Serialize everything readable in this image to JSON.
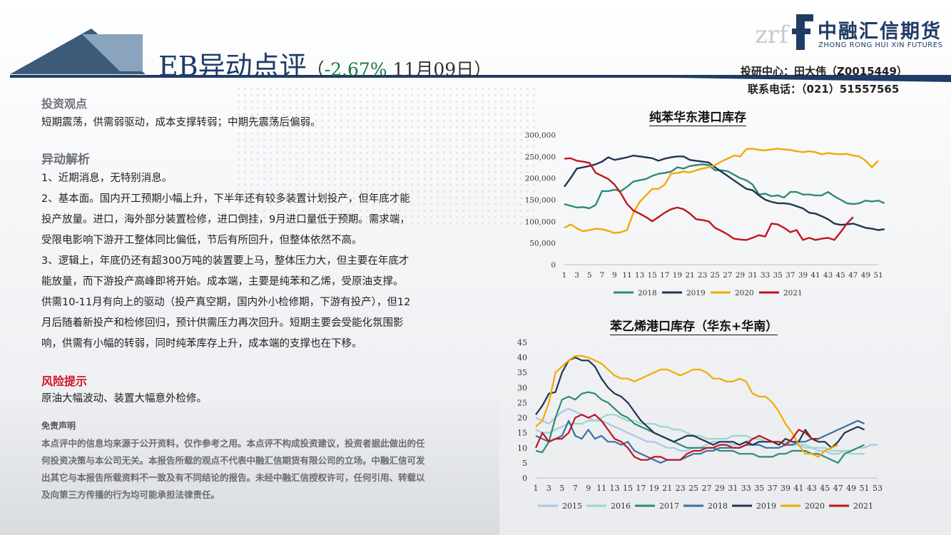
{
  "header": {
    "title_main": "EB异动点评",
    "title_open": "（",
    "title_pct": "-2.67%",
    "title_date": " 11月09日）",
    "contact_line1": "投研中心：田大伟（Z0015449）",
    "contact_line2": "联系电话：（021）51557565",
    "logo_mark": "zrf",
    "logo_cn": "中融汇信期货",
    "logo_en": "ZHONG RONG HUI XIN FUTURES",
    "colors": {
      "navy": "#1f3c66",
      "green": "#1a7a3c",
      "red": "#d0172b"
    }
  },
  "left": {
    "view_heading": "投资观点",
    "view_text": "短期震荡，供需弱驱动，成本支撑转弱；中期先震荡后偏弱。",
    "analysis_heading": "异动解析",
    "lines": [
      "1、近期消息，无特别消息。",
      "2、基本面。国内开工预期小幅上升，下半年还有较多装置计划投产，但年底才能",
      "投产放量。进口，海外部分装置检修，进口倒挂，9月进口量低于预期。需求端，",
      "受限电影响下游开工整体同比偏低，节后有所回升，但整体依然不高。",
      "3、逻辑上，年底仍还有超300万吨的装置要上马，整体压力大，但主要在年底才",
      "能放量，而下游投产高峰即将开始。成本端，主要是纯苯和乙烯，受原油支撑。",
      "供需10-11月有向上的驱动（投产真空期，国内外小检修期，下游有投产），但12",
      "月后随着新投产和检修回归，预计供需压力再次回升。短期主要会受能化氛围影",
      "响，供需有小幅的转弱，同时纯苯库存上升，成本端的支撑也在下移。"
    ],
    "risk_heading": "风险提示",
    "risk_text": "原油大幅波动、装置大幅意外检修。",
    "disclaimer_heading": "免责声明",
    "disclaimer_lines": [
      "本点评中的信息均来源于公开资料，仅作参考之用。本点评不构成投资建议，投资者据此做出的任",
      "何投资决策与本公司无关。本报告所载的观点不代表中融汇信期货有限公司的立场。中融汇信可发",
      "出其它与本报告所载资料不一致及有不同结论的报告。未经中融汇信授权许可，任何引用、转载以",
      "及向第三方传播的行为均可能承担法律责任。"
    ]
  },
  "chart_data": [
    {
      "type": "line",
      "title": "纯苯华东港口库存",
      "ylim": [
        0,
        300000
      ],
      "yticks": [
        "0",
        "50,000",
        "100,000",
        "150,000",
        "200,000",
        "250,000",
        "300,000"
      ],
      "xticks": [
        "1",
        "3",
        "5",
        "7",
        "9",
        "11",
        "13",
        "15",
        "17",
        "19",
        "21",
        "23",
        "25",
        "27",
        "29",
        "31",
        "33",
        "35",
        "37",
        "39",
        "41",
        "43",
        "45",
        "47",
        "49",
        "51"
      ],
      "grid": false,
      "legend_position": "bottom",
      "series": [
        {
          "name": "2018",
          "color": "#2e8b72",
          "values": [
            140000,
            136000,
            132000,
            133000,
            130000,
            138000,
            170000,
            170000,
            173000,
            170000,
            180000,
            192000,
            195000,
            198000,
            205000,
            210000,
            212000,
            215000,
            225000,
            222000,
            228000,
            230000,
            232000,
            230000,
            218000,
            218000,
            216000,
            208000,
            200000,
            195000,
            185000,
            162000,
            164000,
            158000,
            160000,
            155000,
            168000,
            168000,
            162000,
            162000,
            160000,
            160000,
            168000,
            158000,
            150000,
            142000,
            140000,
            142000,
            148000,
            146000,
            148000,
            142000
          ]
        },
        {
          "name": "2019",
          "color": "#1f3552",
          "values": [
            180000,
            200000,
            222000,
            225000,
            228000,
            232000,
            238000,
            248000,
            242000,
            245000,
            248000,
            252000,
            250000,
            248000,
            246000,
            240000,
            245000,
            248000,
            250000,
            250000,
            242000,
            240000,
            238000,
            236000,
            225000,
            215000,
            205000,
            195000,
            185000,
            175000,
            172000,
            160000,
            150000,
            145000,
            142000,
            142000,
            140000,
            135000,
            130000,
            120000,
            118000,
            112000,
            105000,
            95000,
            92000,
            93000,
            95000,
            90000,
            85000,
            83000,
            80000,
            82000
          ]
        },
        {
          "name": "2020",
          "color": "#f2a900",
          "values": [
            85000,
            93000,
            84000,
            77000,
            80000,
            83000,
            82000,
            78000,
            73000,
            75000,
            80000,
            120000,
            145000,
            160000,
            175000,
            175000,
            185000,
            210000,
            212000,
            215000,
            213000,
            218000,
            222000,
            225000,
            230000,
            238000,
            245000,
            252000,
            250000,
            267000,
            268000,
            265000,
            264000,
            266000,
            268000,
            266000,
            265000,
            262000,
            260000,
            262000,
            260000,
            255000,
            258000,
            256000,
            255000,
            256000,
            252000,
            250000,
            240000,
            225000,
            240000
          ]
        },
        {
          "name": "2021",
          "color": "#c0141e",
          "values": [
            245000,
            246000,
            240000,
            238000,
            235000,
            212000,
            205000,
            198000,
            185000,
            165000,
            140000,
            125000,
            118000,
            110000,
            100000,
            110000,
            120000,
            128000,
            132000,
            128000,
            118000,
            105000,
            103000,
            100000,
            85000,
            78000,
            70000,
            60000,
            58000,
            57000,
            62000,
            68000,
            65000,
            95000,
            93000,
            85000,
            75000,
            80000,
            57000,
            62000,
            57000,
            60000,
            62000,
            57000,
            75000,
            95000,
            110000
          ]
        }
      ]
    },
    {
      "type": "line",
      "title": "苯乙烯港口库存（华东+华南）",
      "ylim": [
        0,
        45
      ],
      "yticks": [
        "0",
        "5",
        "10",
        "15",
        "20",
        "25",
        "30",
        "35",
        "40",
        "45"
      ],
      "xticks": [
        "1",
        "3",
        "5",
        "7",
        "9",
        "11",
        "13",
        "15",
        "17",
        "19",
        "21",
        "23",
        "25",
        "27",
        "29",
        "31",
        "33",
        "35",
        "37",
        "39",
        "41",
        "43",
        "45",
        "47",
        "49",
        "51",
        "53"
      ],
      "grid": false,
      "legend_position": "bottom",
      "series": [
        {
          "name": "2015",
          "color": "#a9c7e6",
          "values": [
            20,
            19,
            18,
            20,
            22,
            23,
            22,
            21,
            20,
            19,
            19,
            18,
            17,
            16,
            15,
            14,
            13,
            12,
            12,
            11,
            10,
            10,
            9,
            9,
            10,
            10,
            11,
            12,
            12,
            12,
            11,
            11,
            12,
            13,
            13,
            12,
            12,
            12,
            11,
            11,
            11,
            10,
            10,
            9,
            9,
            8,
            8,
            9,
            9,
            10,
            10,
            11,
            11
          ]
        },
        {
          "name": "2016",
          "color": "#9ad8c8",
          "values": [
            16,
            15,
            15,
            16,
            17,
            18,
            18,
            18,
            19,
            19,
            20,
            21,
            21,
            20,
            19,
            19,
            18,
            18,
            18,
            17,
            17,
            16,
            16,
            15,
            14,
            14,
            13,
            13,
            13,
            13,
            14,
            14,
            14,
            13,
            13,
            12,
            12,
            12,
            12,
            11,
            11,
            11,
            10,
            10,
            10,
            9,
            9,
            9,
            8,
            8,
            8
          ]
        },
        {
          "name": "2017",
          "color": "#2e8b72",
          "values": [
            9,
            8.5,
            12,
            20,
            26,
            27,
            26,
            28,
            28.5,
            28,
            26,
            25,
            23,
            21,
            20,
            18,
            17,
            16,
            15,
            14,
            13,
            12,
            11,
            10,
            10,
            10,
            10,
            10,
            9,
            9,
            9,
            8,
            8,
            8,
            7,
            7,
            7,
            8,
            8,
            9,
            9,
            9,
            8,
            8,
            7,
            6,
            5,
            8,
            9,
            10,
            11
          ]
        },
        {
          "name": "2018",
          "color": "#3a6ea8",
          "values": [
            14,
            13,
            12,
            13,
            14,
            19,
            14,
            13,
            16,
            13,
            14,
            12,
            12,
            11,
            12,
            9,
            8,
            7,
            6,
            5,
            6,
            6,
            6,
            7,
            8,
            8,
            9,
            9,
            10,
            10,
            10,
            10,
            11,
            11,
            11,
            10,
            10,
            10,
            11,
            11,
            12,
            12,
            13,
            13,
            14,
            15,
            16,
            17,
            18,
            19,
            18
          ]
        },
        {
          "name": "2019",
          "color": "#1f3552",
          "values": [
            21,
            24,
            28,
            28.5,
            35,
            39,
            40,
            39,
            39,
            37,
            33,
            30,
            28,
            27,
            25,
            22,
            19,
            17,
            15,
            14,
            13,
            12,
            13,
            14,
            14,
            13,
            12,
            11,
            12,
            12,
            12,
            11,
            12,
            11,
            12,
            12,
            12,
            11,
            13,
            12,
            12,
            16,
            13,
            12,
            12,
            10,
            12,
            15,
            16,
            17,
            16
          ]
        },
        {
          "name": "2020",
          "color": "#f2a900",
          "values": [
            17,
            19,
            25,
            35,
            37,
            39,
            40.5,
            40.5,
            40,
            39,
            38,
            36,
            34,
            33,
            33,
            32,
            33,
            34,
            35,
            36,
            36,
            35,
            34,
            35,
            36,
            36,
            35,
            33,
            33,
            32,
            32,
            33,
            32,
            28,
            27,
            27,
            25,
            22,
            18,
            15,
            11,
            8,
            8,
            7,
            9,
            10,
            11
          ]
        },
        {
          "name": "2021",
          "color": "#c0141e",
          "values": [
            10,
            15,
            12,
            13,
            13,
            15,
            20,
            21,
            20,
            21,
            19,
            16,
            13,
            12,
            10,
            7,
            6,
            6,
            7,
            7,
            6,
            6,
            6,
            8,
            9,
            9,
            10,
            10,
            11,
            11,
            10,
            10,
            11,
            13,
            14,
            13,
            12,
            12,
            11,
            13,
            16,
            15,
            13,
            13
          ]
        }
      ]
    }
  ]
}
